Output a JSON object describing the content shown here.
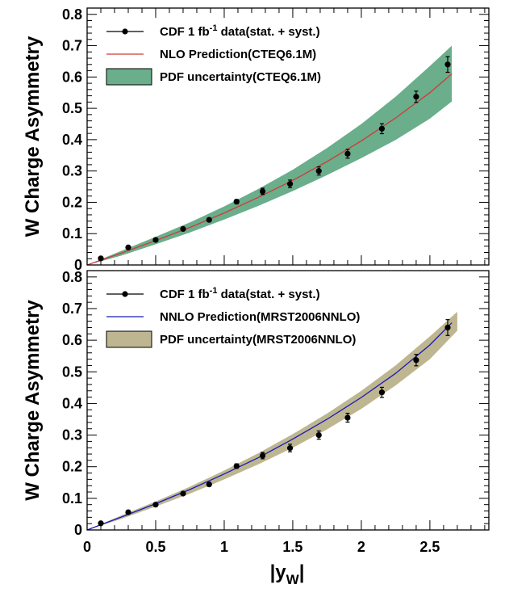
{
  "chart_data": [
    {
      "type": "line",
      "ylabel": "W Charge Asymmetry",
      "xlabel": "",
      "xlim": [
        0,
        2.93
      ],
      "ylim": [
        0,
        0.82
      ],
      "x_ticks": [
        "0",
        "0.5",
        "1",
        "1.5",
        "2",
        "2.5"
      ],
      "y_ticks": [
        "0",
        "0.1",
        "0.2",
        "0.3",
        "0.4",
        "0.5",
        "0.6",
        "0.7",
        "0.8"
      ],
      "legend": [
        "CDF 1 fb⁻¹ data(stat. + syst.)",
        "NLO Prediction(CTEQ6.1M)",
        "PDF uncertainty(CTEQ6.1M)"
      ],
      "colors": {
        "prediction": "#d03a3a",
        "band": "#6aae8b",
        "points": "#000000"
      },
      "series": [
        {
          "name": "CDF 1 fb⁻¹ data(stat. + syst.)",
          "kind": "points",
          "x": [
            0.1,
            0.3,
            0.5,
            0.7,
            0.89,
            1.09,
            1.28,
            1.48,
            1.69,
            1.9,
            2.15,
            2.4,
            2.63
          ],
          "y": [
            0.021,
            0.056,
            0.08,
            0.115,
            0.144,
            0.202,
            0.235,
            0.259,
            0.3,
            0.355,
            0.435,
            0.537,
            0.64
          ],
          "err": [
            0.003,
            0.004,
            0.004,
            0.005,
            0.006,
            0.007,
            0.01,
            0.012,
            0.013,
            0.014,
            0.016,
            0.018,
            0.025
          ]
        },
        {
          "name": "NLO Prediction(CTEQ6.1M)",
          "kind": "line",
          "x": [
            0,
            0.25,
            0.5,
            0.75,
            1.0,
            1.25,
            1.5,
            1.75,
            2.0,
            2.25,
            2.5,
            2.66
          ],
          "y": [
            0.0,
            0.038,
            0.078,
            0.12,
            0.166,
            0.216,
            0.27,
            0.33,
            0.396,
            0.469,
            0.55,
            0.61
          ]
        },
        {
          "name": "PDF uncertainty(CTEQ6.1M)",
          "kind": "band",
          "x": [
            0,
            0.25,
            0.5,
            0.75,
            1.0,
            1.25,
            1.5,
            1.75,
            2.0,
            2.25,
            2.5,
            2.66
          ],
          "ylow": [
            0.0,
            0.03,
            0.066,
            0.104,
            0.145,
            0.189,
            0.236,
            0.287,
            0.341,
            0.399,
            0.467,
            0.522
          ],
          "yhigh": [
            0.0,
            0.045,
            0.09,
            0.136,
            0.187,
            0.243,
            0.304,
            0.373,
            0.45,
            0.537,
            0.635,
            0.7
          ]
        }
      ]
    },
    {
      "type": "line",
      "ylabel": "W Charge Asymmetry",
      "xlabel": "|yW|",
      "xlim": [
        0,
        2.93
      ],
      "ylim": [
        0,
        0.82
      ],
      "x_ticks": [
        "0",
        "0.5",
        "1",
        "1.5",
        "2",
        "2.5"
      ],
      "y_ticks": [
        "0",
        "0.1",
        "0.2",
        "0.3",
        "0.4",
        "0.5",
        "0.6",
        "0.7",
        "0.8"
      ],
      "legend": [
        "CDF 1 fb⁻¹ data(stat. + syst.)",
        "NNLO Prediction(MRST2006NNLO)",
        "PDF uncertainty(MRST2006NNLO)"
      ],
      "colors": {
        "prediction": "#1a1ab8",
        "band": "#bdb690",
        "points": "#000000"
      },
      "series": [
        {
          "name": "CDF 1 fb⁻¹ data(stat. + syst.)",
          "kind": "points",
          "x": [
            0.1,
            0.3,
            0.5,
            0.7,
            0.89,
            1.09,
            1.28,
            1.48,
            1.69,
            1.9,
            2.15,
            2.4,
            2.63
          ],
          "y": [
            0.021,
            0.056,
            0.08,
            0.115,
            0.144,
            0.202,
            0.235,
            0.259,
            0.3,
            0.355,
            0.435,
            0.537,
            0.64
          ],
          "err": [
            0.003,
            0.004,
            0.004,
            0.005,
            0.006,
            0.007,
            0.01,
            0.012,
            0.013,
            0.014,
            0.016,
            0.018,
            0.025
          ]
        },
        {
          "name": "NNLO Prediction(MRST2006NNLO)",
          "kind": "line",
          "x": [
            0,
            0.25,
            0.5,
            0.75,
            1.0,
            1.25,
            1.5,
            1.75,
            2.0,
            2.25,
            2.5,
            2.66
          ],
          "y": [
            0.0,
            0.041,
            0.083,
            0.128,
            0.177,
            0.229,
            0.287,
            0.35,
            0.419,
            0.495,
            0.585,
            0.655
          ]
        },
        {
          "name": "PDF uncertainty(MRST2006NNLO)",
          "kind": "band",
          "x": [
            0,
            0.25,
            0.5,
            0.75,
            1.0,
            1.25,
            1.5,
            1.75,
            2.0,
            2.25,
            2.5,
            2.7
          ],
          "ylow": [
            0.0,
            0.035,
            0.074,
            0.115,
            0.16,
            0.208,
            0.26,
            0.318,
            0.383,
            0.457,
            0.54,
            0.63
          ],
          "yhigh": [
            0.0,
            0.046,
            0.09,
            0.137,
            0.188,
            0.243,
            0.303,
            0.368,
            0.44,
            0.52,
            0.612,
            0.69
          ]
        }
      ]
    }
  ]
}
